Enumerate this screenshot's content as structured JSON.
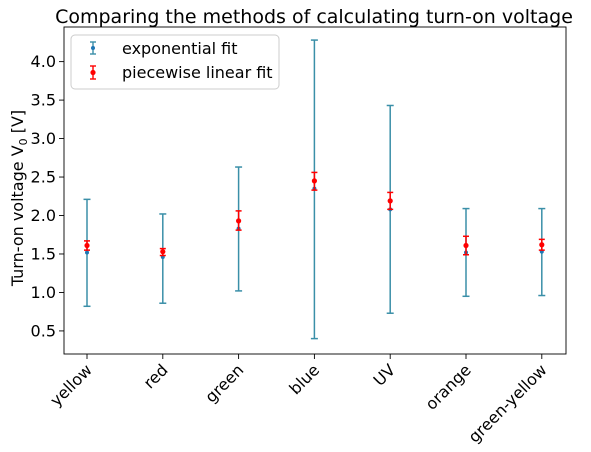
{
  "chart_data": {
    "type": "scatter",
    "title": "Comparing the methods of calculating turn-on voltage",
    "xlabel": "",
    "ylabel_main": "Turn-on voltage V",
    "ylabel_sub": "0",
    "ylabel_unit": " [V]",
    "categories": [
      "yellow",
      "red",
      "green",
      "blue",
      "UV",
      "orange",
      "green-yellow"
    ],
    "ylim": [
      0.2,
      4.45
    ],
    "yticks": [
      0.5,
      1.0,
      1.5,
      2.0,
      2.5,
      3.0,
      3.5,
      4.0
    ],
    "ytick_labels": [
      "0.5",
      "1.0",
      "1.5",
      "2.0",
      "2.5",
      "3.0",
      "3.5",
      "4.0"
    ],
    "grid": false,
    "legend_position": "top-left",
    "series": [
      {
        "name": "exponential fit",
        "color": "#1f77b4",
        "errorbar_color": "#3a8fa8",
        "values": [
          1.52,
          1.46,
          1.83,
          2.35,
          2.08,
          1.52,
          1.53
        ],
        "err_low": [
          0.7,
          0.6,
          0.81,
          1.95,
          1.35,
          0.57,
          0.57
        ],
        "err_high": [
          0.69,
          0.56,
          0.8,
          1.93,
          1.35,
          0.57,
          0.56
        ]
      },
      {
        "name": "piecewise linear fit",
        "color": "#ff0000",
        "errorbar_color": "#ff0000",
        "values": [
          1.61,
          1.53,
          1.93,
          2.45,
          2.19,
          1.61,
          1.62
        ],
        "err_low": [
          0.06,
          0.05,
          0.12,
          0.12,
          0.11,
          0.12,
          0.07
        ],
        "err_high": [
          0.06,
          0.04,
          0.13,
          0.11,
          0.11,
          0.12,
          0.07
        ]
      }
    ]
  }
}
